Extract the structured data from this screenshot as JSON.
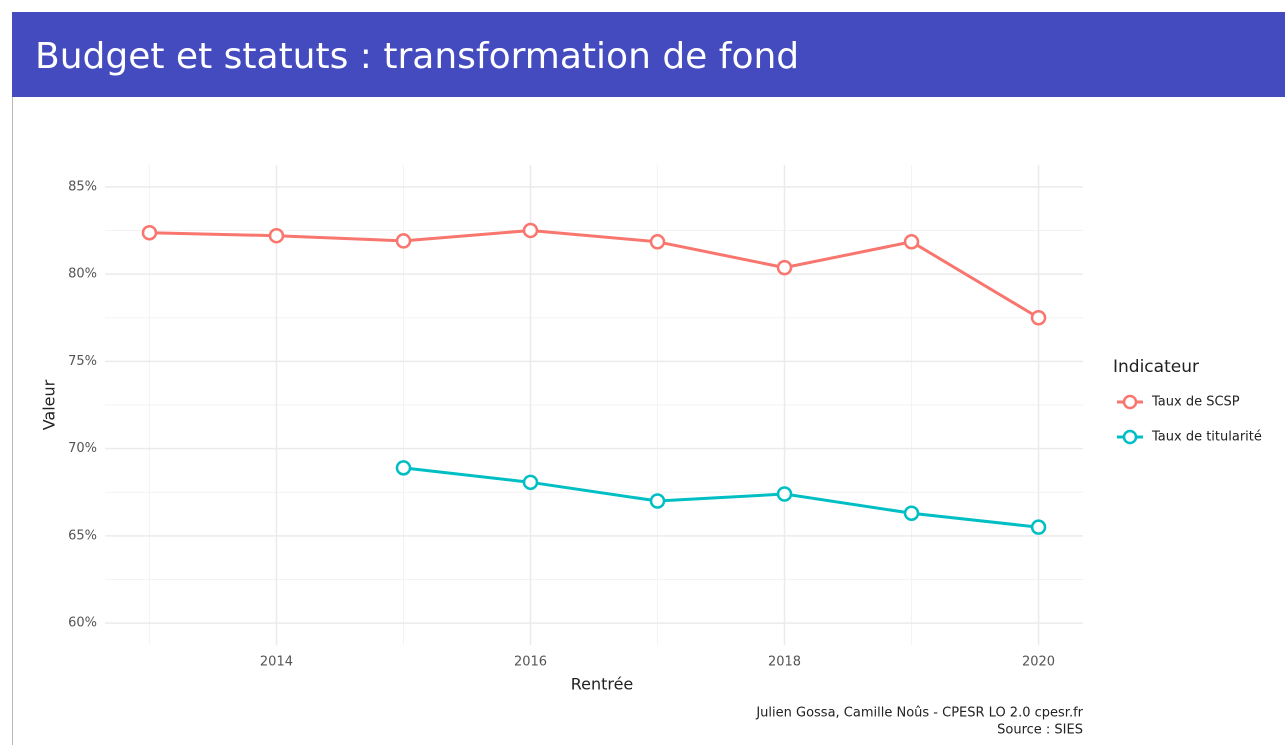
{
  "chart_data": {
    "type": "line",
    "title": "Budget et statuts : transformation de fond",
    "x_label": "Rentrée",
    "y_label": "Valeur",
    "x": [
      2013,
      2014,
      2015,
      2016,
      2017,
      2018,
      2019,
      2020
    ],
    "series": [
      {
        "name": "Taux de SCSP",
        "color": "#f8766d",
        "values": [
          82.37,
          82.2,
          81.9,
          82.5,
          81.85,
          80.37,
          81.85,
          77.5
        ]
      },
      {
        "name": "Taux de titularité",
        "color": "#00bfc4",
        "values": [
          null,
          null,
          68.9,
          68.07,
          67.0,
          67.4,
          66.3,
          65.5
        ]
      }
    ],
    "xlim": [
      2012.65,
      2020.35
    ],
    "xticks": [
      2014,
      2016,
      2018,
      2020
    ],
    "ylim": [
      58.75,
      86.25
    ],
    "yticks": [
      {
        "value": 60,
        "label": "60%"
      },
      {
        "value": 65,
        "label": "65%"
      },
      {
        "value": 70,
        "label": "70%"
      },
      {
        "value": 75,
        "label": "75%"
      },
      {
        "value": 80,
        "label": "80%"
      },
      {
        "value": 85,
        "label": "85%"
      }
    ],
    "grid": true,
    "legend_title": "Indicateur",
    "legend_position": "right",
    "caption": [
      "Julien Gossa, Camille Noûs - CPESR LO 2.0 cpesr.fr",
      "Source : SIES"
    ]
  }
}
